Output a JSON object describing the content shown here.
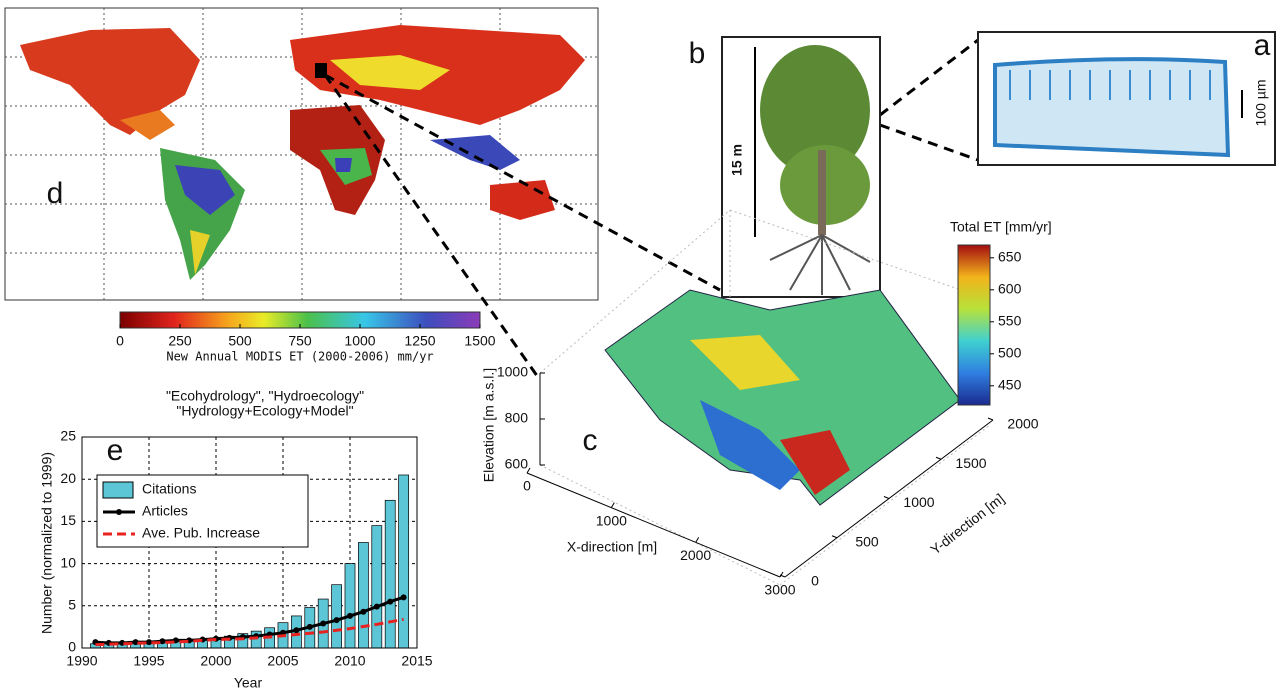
{
  "panel_a": {
    "label": "a",
    "scale_bar": "100 µm"
  },
  "panel_b": {
    "label": "b",
    "scale_bar": "15 m"
  },
  "panel_c": {
    "label": "c",
    "colorbar_title": "Total ET [mm/yr]",
    "colorbar_lim": [
      420,
      670
    ],
    "colorbar_ticks": [
      450,
      500,
      550,
      600,
      650
    ],
    "z_label": "Elevation [m a.s.l.]",
    "z_lim": [
      600,
      1000
    ],
    "z_ticks": [
      600,
      800,
      1000
    ],
    "x_label": "X-direction [m]",
    "x_lim": [
      0,
      3000
    ],
    "x_ticks": [
      0,
      1000,
      2000,
      3000
    ],
    "y_label": "Y-direction [m]",
    "y_lim": [
      0,
      2000
    ],
    "y_ticks": [
      0,
      500,
      1000,
      1500,
      2000
    ]
  },
  "panel_d": {
    "label": "d",
    "colorbar_label": "New Annual MODIS ET (2000-2006) mm/yr",
    "colorbar_lim": [
      0,
      1500
    ],
    "colorbar_ticks": [
      0,
      250,
      500,
      750,
      1000,
      1250,
      1500
    ]
  },
  "chart_data": {
    "type": "bar",
    "panel_label": "e",
    "title": [
      "\"Ecohydrology\", \"Hydroecology\"",
      "\"Hydrology+Ecology+Model\""
    ],
    "x_label": "Year",
    "y_label": "Number (normalized to 1999)",
    "x": [
      1991,
      1992,
      1993,
      1994,
      1995,
      1996,
      1997,
      1998,
      1999,
      2000,
      2001,
      2002,
      2003,
      2004,
      2005,
      2006,
      2007,
      2008,
      2009,
      2010,
      2011,
      2012,
      2013,
      2014
    ],
    "series": [
      {
        "name": "Citations",
        "style": "bar",
        "color": "#5cc6d6",
        "values": [
          0.5,
          0.5,
          0.6,
          0.6,
          0.7,
          0.8,
          0.9,
          1.0,
          1.0,
          1.2,
          1.4,
          1.7,
          2.0,
          2.4,
          3.0,
          3.8,
          4.8,
          5.8,
          7.5,
          10,
          12.5,
          14.5,
          17.5,
          20.5
        ]
      },
      {
        "name": "Articles",
        "style": "line-markers",
        "color": "#000000",
        "values": [
          0.7,
          0.6,
          0.6,
          0.7,
          0.7,
          0.8,
          0.9,
          0.9,
          1.0,
          1.1,
          1.2,
          1.3,
          1.4,
          1.6,
          1.8,
          2.1,
          2.5,
          2.9,
          3.3,
          3.8,
          4.3,
          4.9,
          5.5,
          6.0
        ]
      },
      {
        "name": "Ave. Pub. Increase",
        "style": "dashed-line",
        "color": "#e8231f",
        "values": [
          0.4,
          0.45,
          0.5,
          0.55,
          0.6,
          0.65,
          0.7,
          0.8,
          0.9,
          1.0,
          1.05,
          1.1,
          1.2,
          1.3,
          1.45,
          1.6,
          1.75,
          1.9,
          2.1,
          2.3,
          2.55,
          2.8,
          3.1,
          3.4
        ]
      }
    ],
    "xlim": [
      1990,
      2015
    ],
    "xticks": [
      1990,
      1995,
      2000,
      2005,
      2010,
      2015
    ],
    "ylim": [
      0,
      25
    ],
    "yticks": [
      0,
      5,
      10,
      15,
      20,
      25
    ],
    "grid": true
  }
}
